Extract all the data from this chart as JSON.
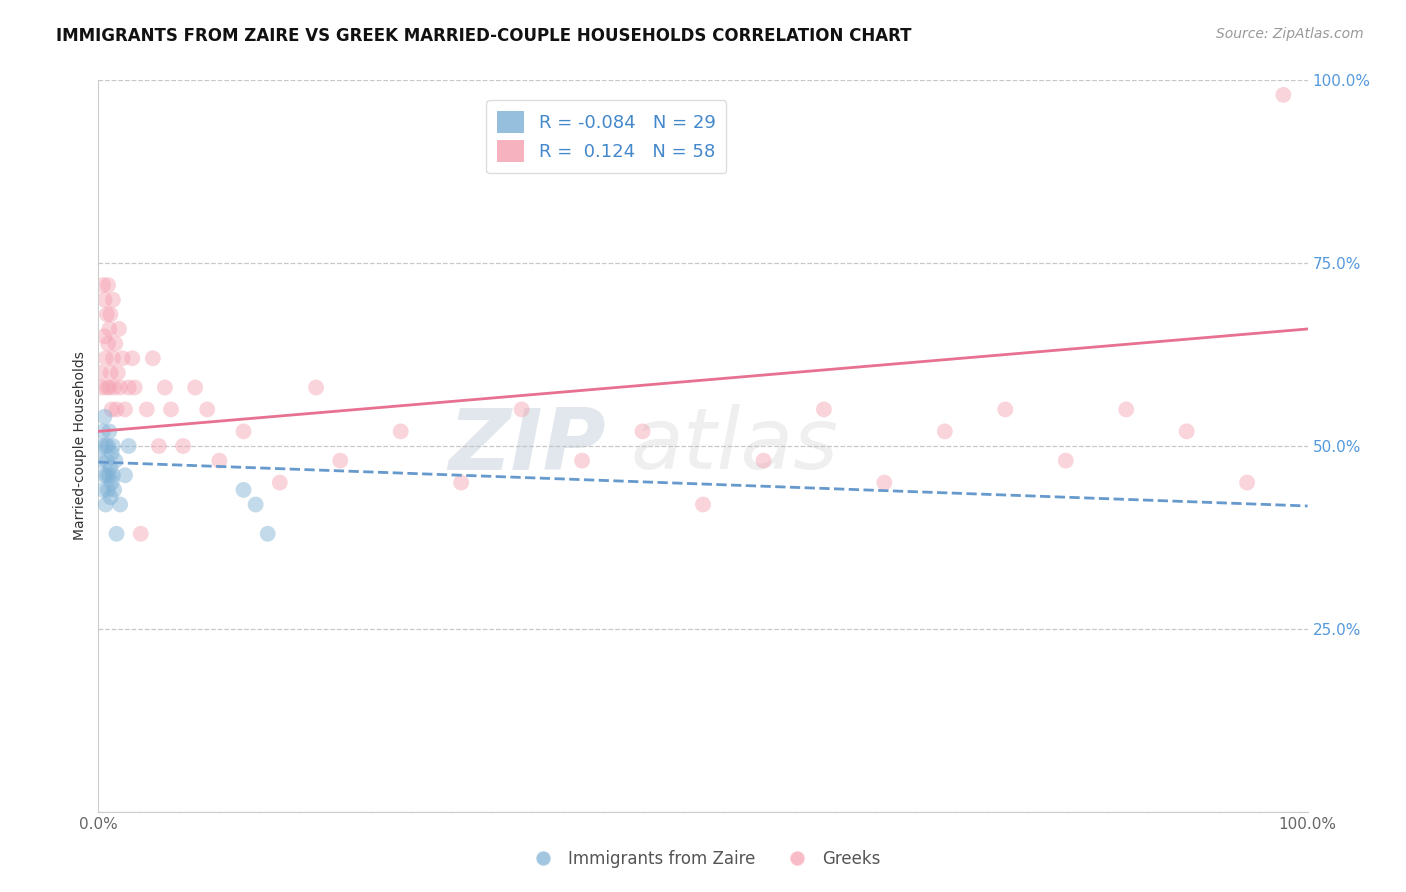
{
  "title": "IMMIGRANTS FROM ZAIRE VS GREEK MARRIED-COUPLE HOUSEHOLDS CORRELATION CHART",
  "source": "Source: ZipAtlas.com",
  "ylabel": "Married-couple Households",
  "xlim": [
    0.0,
    1.0
  ],
  "ylim": [
    0.0,
    1.0
  ],
  "yticks": [
    0.0,
    0.25,
    0.5,
    0.75,
    1.0
  ],
  "ytick_labels": [
    "",
    "25.0%",
    "50.0%",
    "75.0%",
    "100.0%"
  ],
  "xtick_labels": [
    "0.0%",
    "100.0%"
  ],
  "legend_r_blue": "-0.084",
  "legend_n_blue": "29",
  "legend_r_pink": " 0.124",
  "legend_n_pink": "58",
  "blue_color": "#7BAFD4",
  "pink_color": "#F4A0B0",
  "blue_line_color": "#6699CC",
  "pink_line_color": "#E87090",
  "background_color": "#FFFFFF",
  "watermark_zip": "ZIP",
  "watermark_atlas": "atlas",
  "blue_scatter_x": [
    0.002,
    0.003,
    0.004,
    0.004,
    0.005,
    0.005,
    0.006,
    0.006,
    0.007,
    0.007,
    0.008,
    0.008,
    0.009,
    0.009,
    0.01,
    0.01,
    0.011,
    0.011,
    0.012,
    0.012,
    0.013,
    0.014,
    0.015,
    0.018,
    0.022,
    0.025,
    0.12,
    0.13,
    0.14
  ],
  "blue_scatter_y": [
    0.48,
    0.5,
    0.44,
    0.52,
    0.46,
    0.54,
    0.42,
    0.5,
    0.48,
    0.46,
    0.44,
    0.5,
    0.46,
    0.52,
    0.43,
    0.47,
    0.45,
    0.49,
    0.46,
    0.5,
    0.44,
    0.48,
    0.38,
    0.42,
    0.46,
    0.5,
    0.44,
    0.42,
    0.38
  ],
  "pink_scatter_x": [
    0.002,
    0.003,
    0.004,
    0.005,
    0.005,
    0.006,
    0.007,
    0.007,
    0.008,
    0.008,
    0.009,
    0.009,
    0.01,
    0.01,
    0.011,
    0.012,
    0.012,
    0.013,
    0.014,
    0.015,
    0.016,
    0.017,
    0.018,
    0.02,
    0.022,
    0.025,
    0.028,
    0.03,
    0.035,
    0.04,
    0.045,
    0.05,
    0.055,
    0.06,
    0.07,
    0.08,
    0.09,
    0.1,
    0.12,
    0.15,
    0.18,
    0.2,
    0.25,
    0.3,
    0.35,
    0.4,
    0.45,
    0.5,
    0.55,
    0.6,
    0.65,
    0.7,
    0.75,
    0.8,
    0.85,
    0.9,
    0.95,
    0.98
  ],
  "pink_scatter_y": [
    0.6,
    0.58,
    0.72,
    0.65,
    0.7,
    0.62,
    0.58,
    0.68,
    0.64,
    0.72,
    0.58,
    0.66,
    0.6,
    0.68,
    0.55,
    0.62,
    0.7,
    0.58,
    0.64,
    0.55,
    0.6,
    0.66,
    0.58,
    0.62,
    0.55,
    0.58,
    0.62,
    0.58,
    0.38,
    0.55,
    0.62,
    0.5,
    0.58,
    0.55,
    0.5,
    0.58,
    0.55,
    0.48,
    0.52,
    0.45,
    0.58,
    0.48,
    0.52,
    0.45,
    0.55,
    0.48,
    0.52,
    0.42,
    0.48,
    0.55,
    0.45,
    0.52,
    0.55,
    0.48,
    0.55,
    0.52,
    0.45,
    0.98
  ],
  "title_fontsize": 12,
  "axis_label_fontsize": 10,
  "tick_fontsize": 11,
  "legend_fontsize": 13,
  "source_fontsize": 10,
  "marker_size": 130,
  "marker_alpha": 0.45,
  "grid_color": "#BBBBBB",
  "grid_alpha": 0.8,
  "grid_linestyle": "--",
  "blue_trend_start_y": 0.478,
  "blue_trend_end_y": 0.418,
  "pink_trend_start_y": 0.52,
  "pink_trend_end_y": 0.66
}
